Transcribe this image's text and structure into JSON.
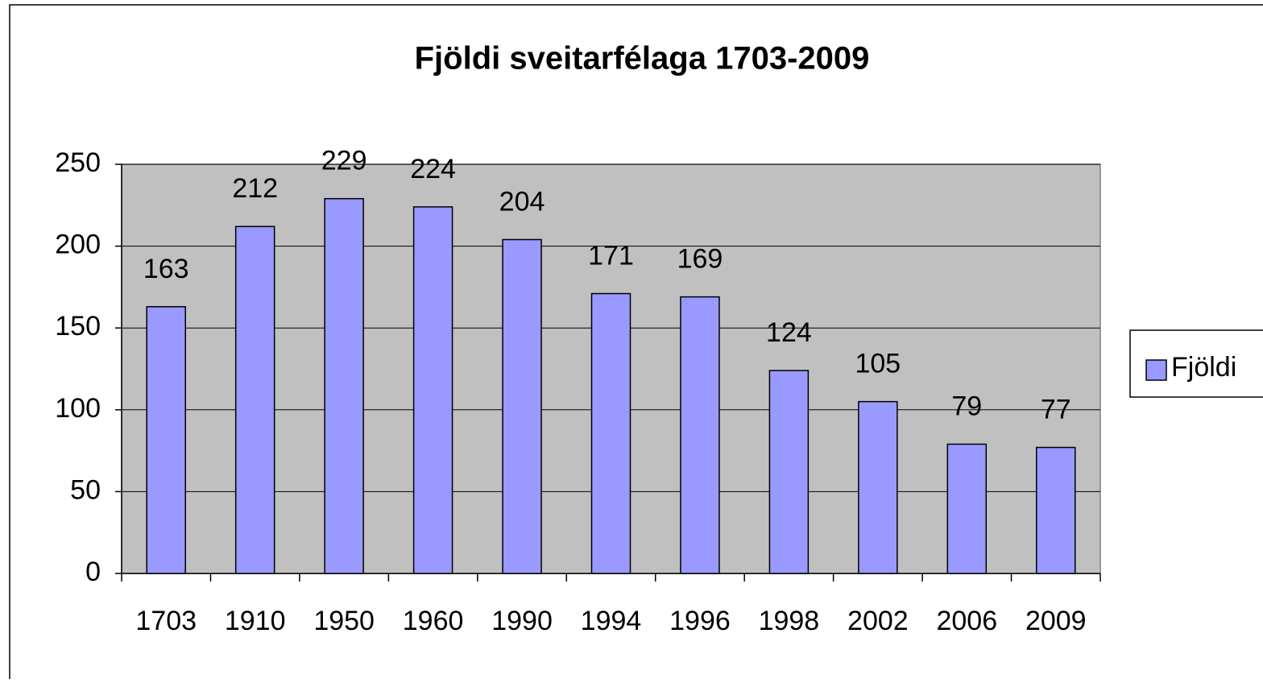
{
  "chart_data": {
    "type": "bar",
    "title": "Fjöldi sveitarfélaga 1703-2009",
    "categories": [
      "1703",
      "1910",
      "1950",
      "1960",
      "1990",
      "1994",
      "1996",
      "1998",
      "2002",
      "2006",
      "2009"
    ],
    "series": [
      {
        "name": "Fjöldi",
        "color": "#9999ff",
        "values": [
          163,
          212,
          229,
          224,
          204,
          171,
          169,
          124,
          105,
          79,
          77
        ]
      }
    ],
    "ylim": [
      0,
      250
    ],
    "yticks": [
      0,
      50,
      100,
      150,
      200,
      250
    ],
    "grid": true,
    "legend": "right",
    "plot_background": "#c0c0c0"
  }
}
